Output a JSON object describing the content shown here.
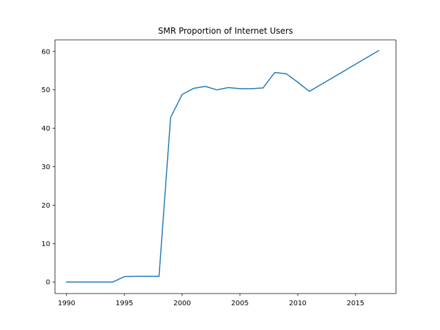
{
  "chart_data": {
    "type": "line",
    "title": "SMR Proportion of Internet Users",
    "xlabel": "",
    "ylabel": "",
    "xlim": [
      1989,
      2018.5
    ],
    "ylim": [
      -3,
      63
    ],
    "x_ticks": [
      1990,
      1995,
      2000,
      2005,
      2010,
      2015
    ],
    "y_ticks": [
      0,
      10,
      20,
      30,
      40,
      50,
      60
    ],
    "grid": false,
    "series": [
      {
        "color": "#1f77b4",
        "x": [
          1990,
          1991,
          1992,
          1993,
          1994,
          1995,
          1996,
          1997,
          1998,
          1999,
          2000,
          2001,
          2002,
          2003,
          2004,
          2005,
          2006,
          2007,
          2008,
          2009,
          2010,
          2011,
          2017
        ],
        "y": [
          0,
          0,
          0,
          0,
          0,
          1.4,
          1.5,
          1.5,
          1.5,
          42.8,
          48.8,
          50.4,
          50.9,
          50.0,
          50.6,
          50.3,
          50.3,
          50.5,
          54.5,
          54.2,
          52.0,
          49.6,
          60.2
        ]
      }
    ]
  }
}
